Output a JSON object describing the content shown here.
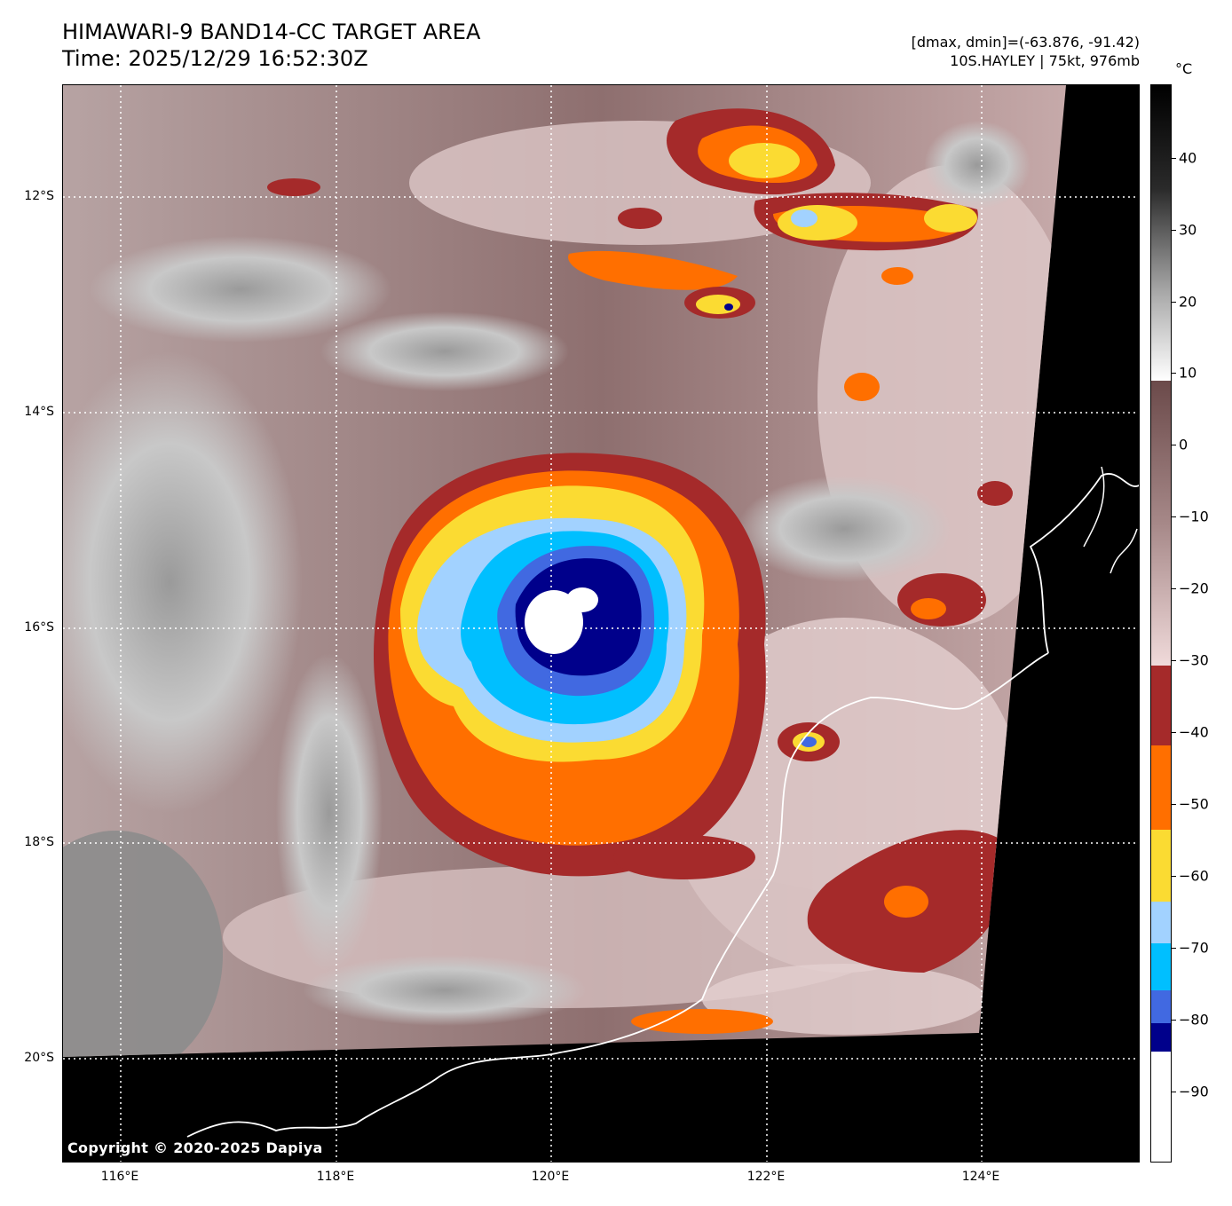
{
  "header": {
    "title_line1": "HIMAWARI-9 BAND14-CC TARGET AREA",
    "title_line2": "Time: 2025/12/29 16:52:30Z",
    "range_text": "[dmax, dmin]=(-63.876, -91.42)",
    "storm_text": "10S.HAYLEY | 75kt, 976mb"
  },
  "map": {
    "copyright": "Copyright © 2020-2025 Dapiya",
    "lat_labels": [
      "12°S",
      "14°S",
      "16°S",
      "18°S",
      "20°S"
    ],
    "lon_labels": [
      "116°E",
      "118°E",
      "120°E",
      "122°E",
      "124°E"
    ],
    "storm_center": {
      "lon": 120.0,
      "lat": -15.9
    }
  },
  "colorbar": {
    "unit": "°C",
    "tick_labels": [
      "40",
      "30",
      "20",
      "10",
      "0",
      "−10",
      "−20",
      "−30",
      "−40",
      "−50",
      "−60",
      "−70",
      "−80",
      "−90"
    ],
    "colors": {
      "white": "#ffffff",
      "navy": "#00008b",
      "royal_blue": "#4169e1",
      "deep_sky_blue": "#00bfff",
      "light_blue": "#a2d2ff",
      "yellow": "#fbdb32",
      "orange": "#ff6f00",
      "dark_red": "#a52a2a"
    }
  }
}
